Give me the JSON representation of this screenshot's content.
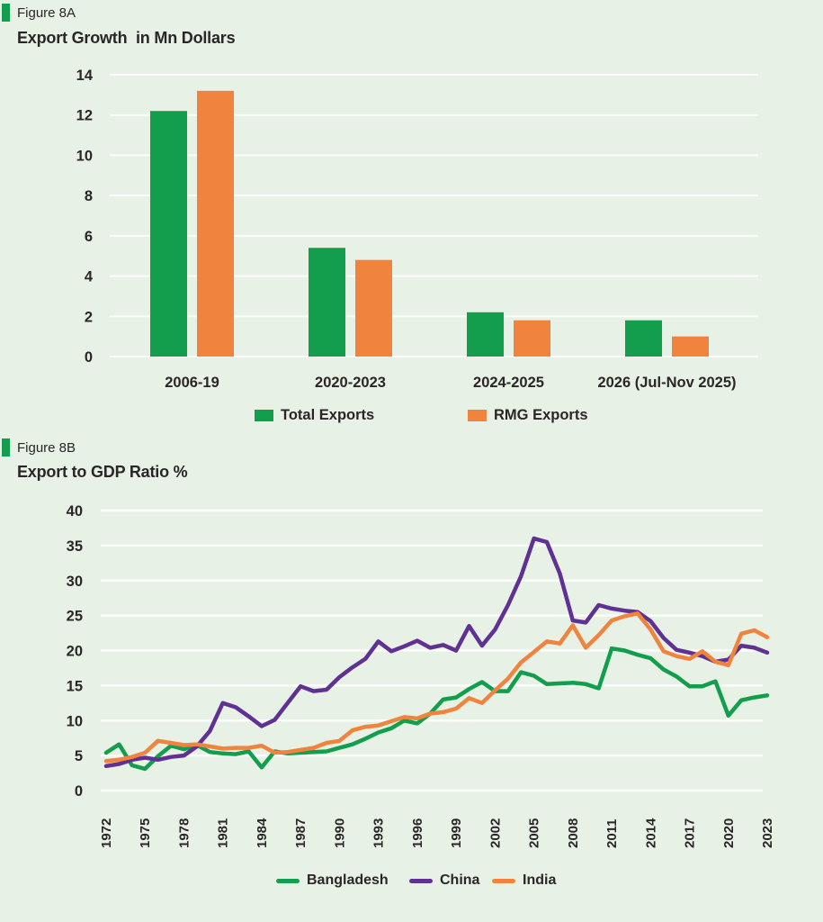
{
  "page": {
    "background": "#e8f1e5"
  },
  "colors": {
    "green": "#129e4d",
    "orange": "#f0843e",
    "purple": "#5e3192",
    "text": "#2a2627",
    "grid": "#fbfdfa"
  },
  "figure_a": {
    "tag": "Figure 8A",
    "title": "Export Growth  in Mn Dollars",
    "legend": [
      {
        "label": "Total Exports",
        "color": "#129e4d"
      },
      {
        "label": "RMG Exports",
        "color": "#f0843e"
      }
    ]
  },
  "figure_b": {
    "tag": "Figure 8B",
    "title": "Export to GDP Ratio %",
    "legend": [
      {
        "label": "Bangladesh",
        "color": "#129e4d"
      },
      {
        "label": "China",
        "color": "#5e3192"
      },
      {
        "label": "India",
        "color": "#f0843e"
      }
    ]
  },
  "chart_data": [
    {
      "type": "bar",
      "title": "Export Growth in Mn Dollars",
      "categories": [
        "2006-19",
        "2020-2023",
        "2024-2025",
        "2026 (Jul-Nov 2025)"
      ],
      "series": [
        {
          "name": "Total Exports",
          "color": "#129e4d",
          "values": [
            12.2,
            5.4,
            2.2,
            1.8
          ]
        },
        {
          "name": "RMG Exports",
          "color": "#f0843e",
          "values": [
            13.2,
            4.8,
            1.8,
            1.0
          ]
        }
      ],
      "ylim": [
        0,
        14
      ],
      "yticks": [
        0,
        2,
        4,
        6,
        8,
        10,
        12,
        14
      ],
      "grid": true,
      "legend_position": "bottom"
    },
    {
      "type": "line",
      "title": "Export to GDP Ratio %",
      "x": [
        1972,
        1973,
        1974,
        1975,
        1976,
        1977,
        1978,
        1979,
        1980,
        1981,
        1982,
        1983,
        1984,
        1985,
        1986,
        1987,
        1988,
        1989,
        1990,
        1991,
        1992,
        1993,
        1994,
        1995,
        1996,
        1997,
        1998,
        1999,
        2000,
        2001,
        2002,
        2003,
        2004,
        2005,
        2006,
        2007,
        2008,
        2009,
        2010,
        2011,
        2012,
        2013,
        2014,
        2015,
        2016,
        2017,
        2018,
        2019,
        2020,
        2021,
        2022,
        2023
      ],
      "xticks": [
        1972,
        1975,
        1978,
        1981,
        1984,
        1987,
        1990,
        1993,
        1996,
        1999,
        2002,
        2005,
        2008,
        2011,
        2014,
        2017,
        2020,
        2023
      ],
      "series": [
        {
          "name": "Bangladesh",
          "color": "#129e4d",
          "values": [
            5.4,
            6.6,
            3.6,
            3.1,
            4.9,
            6.4,
            5.9,
            6.5,
            5.5,
            5.3,
            5.2,
            5.6,
            3.3,
            5.6,
            5.3,
            5.4,
            5.5,
            5.6,
            6.1,
            6.6,
            7.4,
            8.3,
            8.9,
            10.0,
            9.6,
            11.0,
            13.0,
            13.3,
            14.5,
            15.5,
            14.2,
            14.2,
            16.9,
            16.4,
            15.2,
            15.3,
            15.4,
            15.2,
            14.6,
            20.3,
            20.0,
            19.4,
            18.9,
            17.3,
            16.3,
            14.9,
            14.9,
            15.6,
            10.7,
            12.9,
            13.3,
            13.6
          ]
        },
        {
          "name": "China",
          "color": "#5e3192",
          "values": [
            3.5,
            3.8,
            4.4,
            4.7,
            4.4,
            4.8,
            5.0,
            6.3,
            8.5,
            12.5,
            11.9,
            10.6,
            9.2,
            10.1,
            12.5,
            14.9,
            14.2,
            14.4,
            16.2,
            17.6,
            18.8,
            21.3,
            19.9,
            20.6,
            21.4,
            20.4,
            20.8,
            20.0,
            23.5,
            20.7,
            23.0,
            26.5,
            30.6,
            36.0,
            35.5,
            31.0,
            24.3,
            24.0,
            26.5,
            26.0,
            25.7,
            25.5,
            24.2,
            21.8,
            20.1,
            19.7,
            19.2,
            18.4,
            18.7,
            20.7,
            20.4,
            19.7
          ]
        },
        {
          "name": "India",
          "color": "#f0843e",
          "values": [
            4.2,
            4.4,
            4.8,
            5.4,
            7.1,
            6.8,
            6.5,
            6.6,
            6.3,
            6.0,
            6.1,
            6.1,
            6.4,
            5.4,
            5.5,
            5.8,
            6.1,
            6.8,
            7.1,
            8.6,
            9.1,
            9.3,
            9.9,
            10.5,
            10.3,
            11.0,
            11.2,
            11.7,
            13.2,
            12.5,
            14.3,
            16.0,
            18.3,
            19.8,
            21.3,
            21.0,
            23.6,
            20.4,
            22.2,
            24.3,
            24.9,
            25.3,
            23.0,
            19.9,
            19.2,
            18.8,
            19.9,
            18.4,
            17.9,
            22.4,
            22.9,
            21.9
          ]
        }
      ],
      "ylim": [
        0,
        40
      ],
      "yticks": [
        0,
        5,
        10,
        15,
        20,
        25,
        30,
        35,
        40
      ],
      "grid": true,
      "legend_position": "bottom"
    }
  ]
}
